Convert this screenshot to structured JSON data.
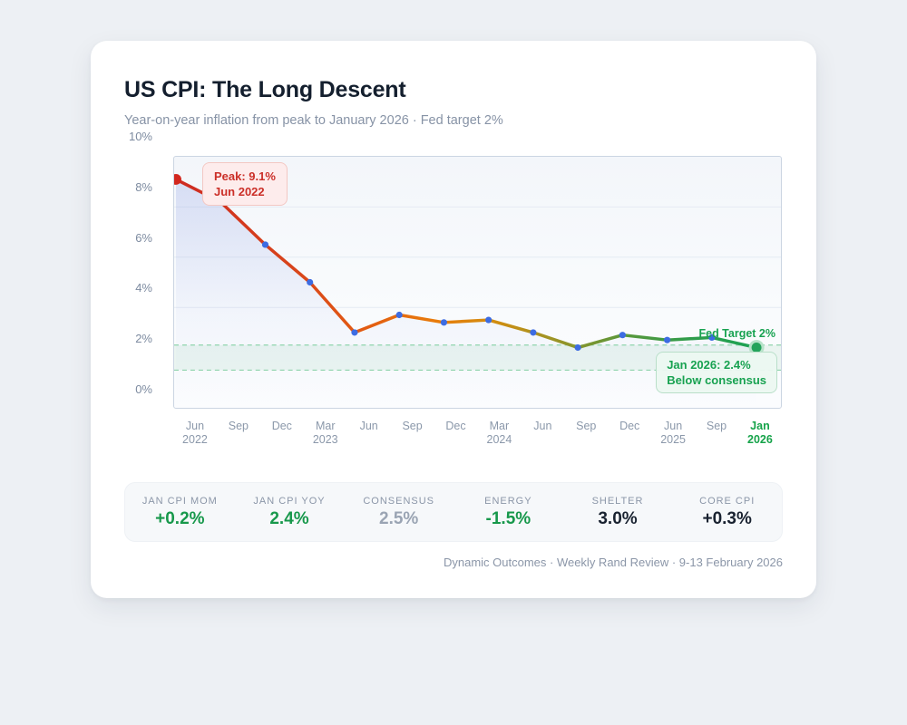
{
  "card": {
    "title": "US CPI: The Long Descent",
    "subtitle": "Year-on-year inflation from peak to January 2026 · Fed target 2%",
    "footer": "Dynamic Outcomes · Weekly Rand Review · 9-13 February 2026"
  },
  "chart_data": {
    "type": "line",
    "title": "US CPI: The Long Descent",
    "subtitle": "Year-on-year inflation from peak to January 2026 · Fed target 2%",
    "categories": [
      "Jun 2022",
      "Sep 2022",
      "Dec 2022",
      "Mar 2023",
      "Jun 2023",
      "Sep 2023",
      "Dec 2023",
      "Mar 2024",
      "Jun 2024",
      "Sep 2024",
      "Dec 2024",
      "Jun 2025",
      "Sep 2025",
      "Jan 2026"
    ],
    "values": [
      9.1,
      8.2,
      6.5,
      5.0,
      3.0,
      3.7,
      3.4,
      3.5,
      3.0,
      2.4,
      2.9,
      2.7,
      2.8,
      2.4
    ],
    "unit": "%",
    "ylim": [
      0,
      10
    ],
    "y_ticks": [
      {
        "v": 10,
        "label": "10%"
      },
      {
        "v": 8,
        "label": "8%"
      },
      {
        "v": 6,
        "label": "6%"
      },
      {
        "v": 4,
        "label": "4%"
      },
      {
        "v": 2,
        "label": "2%"
      },
      {
        "v": 0,
        "label": "0%"
      }
    ],
    "gridlines_at": [
      8,
      6,
      4
    ],
    "x_ticks": [
      {
        "m": "Jun",
        "y": "2022"
      },
      {
        "m": "Sep"
      },
      {
        "m": "Dec"
      },
      {
        "m": "Mar",
        "y": "2023"
      },
      {
        "m": "Jun"
      },
      {
        "m": "Sep"
      },
      {
        "m": "Dec"
      },
      {
        "m": "Mar",
        "y": "2024"
      },
      {
        "m": "Jun"
      },
      {
        "m": "Sep"
      },
      {
        "m": "Dec"
      },
      {
        "m": "Jun",
        "y": "2025"
      },
      {
        "m": "Sep"
      },
      {
        "m": "Jan",
        "y": "2026",
        "highlight": true
      }
    ],
    "target_band": {
      "from": 1.5,
      "to": 2.5
    },
    "annotations": {
      "peak": {
        "line1": "Peak: 9.1%",
        "line2": "Jun 2022"
      },
      "end": {
        "line1": "Jan 2026: 2.4%",
        "line2": "Below consensus"
      },
      "fed_target": "Fed Target 2%"
    },
    "colors": {
      "peak_dot": "#d2271e",
      "point_dot": "#3d6ce2",
      "end_dot": "#23a35b",
      "end_dot_ring": "#b7e2c9",
      "band_fill": "rgba(52,168,83,0.08)",
      "band_line": "#8ed3ac",
      "gridline": "#e6ebf3",
      "area_fill": "#6d83dc",
      "line_gradient": [
        {
          "offset": 0,
          "color": "#cd2a22"
        },
        {
          "offset": 0.2,
          "color": "#d8441b"
        },
        {
          "offset": 0.33,
          "color": "#e35d12"
        },
        {
          "offset": 0.45,
          "color": "#e87c0b"
        },
        {
          "offset": 0.55,
          "color": "#d18d10"
        },
        {
          "offset": 0.65,
          "color": "#9d9426"
        },
        {
          "offset": 0.76,
          "color": "#5f9739"
        },
        {
          "offset": 0.88,
          "color": "#319c4a"
        },
        {
          "offset": 1,
          "color": "#1ca355"
        }
      ],
      "accent_green": "#17984b",
      "accent_red": "#cb2f28"
    }
  },
  "stats": [
    {
      "label": "JAN CPI MOM",
      "value": "+0.2%",
      "tone": "green"
    },
    {
      "label": "JAN CPI YOY",
      "value": "2.4%",
      "tone": "green"
    },
    {
      "label": "CONSENSUS",
      "value": "2.5%",
      "tone": "muted"
    },
    {
      "label": "ENERGY",
      "value": "-1.5%",
      "tone": "green"
    },
    {
      "label": "SHELTER",
      "value": "3.0%",
      "tone": "dark"
    },
    {
      "label": "CORE CPI",
      "value": "+0.3%",
      "tone": "dark"
    }
  ]
}
